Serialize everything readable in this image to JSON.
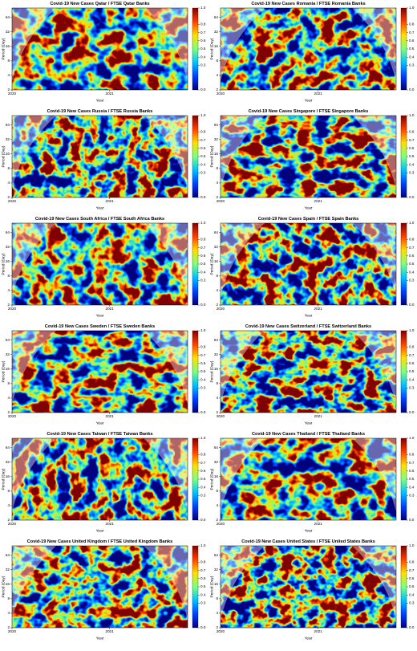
{
  "chart_data": [
    {
      "type": "heatmap",
      "title": "Covid-19 New Cases Qatar / FTSE Qatar Banks",
      "x_label": "Year",
      "y_label": "Period (Day)",
      "xlim": [
        2020,
        2021.8
      ],
      "xticks": [
        2020,
        2021
      ],
      "ylim": [
        2,
        100
      ],
      "log_y": true,
      "yticks": [
        2,
        4,
        8,
        16,
        32,
        64
      ],
      "colormap": [
        "#00007f",
        "#0040ff",
        "#00c0ff",
        "#7fff80",
        "#ffe000",
        "#ff4000",
        "#7f0000"
      ],
      "colorbar_lim": [
        0,
        1
      ],
      "colorbar_ticks": [
        {
          "value": 1,
          "label": "1.0"
        },
        {
          "value": 0.8,
          "label": "0.8"
        },
        {
          "value": 0.7,
          "label": "0.7"
        },
        {
          "value": 0.6,
          "label": "0.6"
        },
        {
          "value": 0.5,
          "label": "0.5"
        },
        {
          "value": 0.4,
          "label": "0.4"
        },
        {
          "value": 0.3,
          "label": "0.3"
        },
        {
          "value": 0,
          "label": "0.0"
        }
      ]
    },
    {
      "type": "heatmap",
      "title": "Covid-19 New Cases Romania / FTSE Romania Banks",
      "x_label": "Year",
      "y_label": "Period (Day)",
      "xlim": [
        2020,
        2021.8
      ],
      "xticks": [
        2020,
        2021
      ],
      "ylim": [
        2,
        100
      ],
      "log_y": true,
      "yticks": [
        2,
        4,
        8,
        16,
        32,
        64
      ],
      "colormap": [
        "#00007f",
        "#0040ff",
        "#00c0ff",
        "#7fff80",
        "#ffe000",
        "#ff4000",
        "#7f0000"
      ],
      "colorbar_lim": [
        0,
        1
      ],
      "colorbar_ticks": [
        {
          "value": 1,
          "label": "1.0"
        },
        {
          "value": 0.8,
          "label": "0.8"
        },
        {
          "value": 0.7,
          "label": "0.7"
        },
        {
          "value": 0.6,
          "label": "0.6"
        },
        {
          "value": 0.5,
          "label": "0.5"
        },
        {
          "value": 0.4,
          "label": "0.4"
        },
        {
          "value": 0.3,
          "label": "0.3"
        },
        {
          "value": 0,
          "label": "0.0"
        }
      ]
    },
    {
      "type": "heatmap",
      "title": "Covid-19 New Cases Russia / FTSE Russia Banks",
      "x_label": "Year",
      "y_label": "Period (Day)",
      "xlim": [
        2020,
        2021.8
      ],
      "xticks": [
        2020,
        2021
      ],
      "ylim": [
        2,
        100
      ],
      "log_y": true,
      "yticks": [
        2,
        4,
        8,
        16,
        32,
        64
      ],
      "colormap": [
        "#00007f",
        "#0040ff",
        "#00c0ff",
        "#7fff80",
        "#ffe000",
        "#ff4000",
        "#7f0000"
      ],
      "colorbar_lim": [
        0,
        1
      ],
      "colorbar_ticks": [
        {
          "value": 1,
          "label": "1.0"
        },
        {
          "value": 0.8,
          "label": "0.8"
        },
        {
          "value": 0.7,
          "label": "0.7"
        },
        {
          "value": 0.6,
          "label": "0.6"
        },
        {
          "value": 0.5,
          "label": "0.5"
        },
        {
          "value": 0.4,
          "label": "0.4"
        },
        {
          "value": 0.3,
          "label": "0.3"
        },
        {
          "value": 0,
          "label": "0.0"
        }
      ]
    },
    {
      "type": "heatmap",
      "title": "Covid-19 New Cases Singapore / FTSE Singapore Banks",
      "x_label": "Year",
      "y_label": "Period (Day)",
      "xlim": [
        2020,
        2021.8
      ],
      "xticks": [
        2020,
        2021
      ],
      "ylim": [
        2,
        100
      ],
      "log_y": true,
      "yticks": [
        2,
        4,
        8,
        16,
        32,
        64
      ],
      "colormap": [
        "#00007f",
        "#0040ff",
        "#00c0ff",
        "#7fff80",
        "#ffe000",
        "#ff4000",
        "#7f0000"
      ],
      "colorbar_lim": [
        0,
        1
      ],
      "colorbar_ticks": [
        {
          "value": 1,
          "label": "1.0"
        },
        {
          "value": 0.8,
          "label": "0.8"
        },
        {
          "value": 0.7,
          "label": "0.7"
        },
        {
          "value": 0.6,
          "label": "0.6"
        },
        {
          "value": 0.5,
          "label": "0.5"
        },
        {
          "value": 0.4,
          "label": "0.4"
        },
        {
          "value": 0.3,
          "label": "0.3"
        },
        {
          "value": 0,
          "label": "0.0"
        }
      ]
    },
    {
      "type": "heatmap",
      "title": "Covid-19 New Cases South Africa / FTSE South Africa Banks",
      "x_label": "Year",
      "y_label": "Period (Day)",
      "xlim": [
        2020,
        2021.8
      ],
      "xticks": [
        2020,
        2021
      ],
      "ylim": [
        2,
        100
      ],
      "log_y": true,
      "yticks": [
        2,
        4,
        8,
        16,
        32,
        64
      ],
      "colormap": [
        "#00007f",
        "#0040ff",
        "#00c0ff",
        "#7fff80",
        "#ffe000",
        "#ff4000",
        "#7f0000"
      ],
      "colorbar_lim": [
        0,
        1
      ],
      "colorbar_ticks": [
        {
          "value": 1,
          "label": "1.0"
        },
        {
          "value": 0.8,
          "label": "0.8"
        },
        {
          "value": 0.7,
          "label": "0.7"
        },
        {
          "value": 0.6,
          "label": "0.6"
        },
        {
          "value": 0.5,
          "label": "0.5"
        },
        {
          "value": 0.4,
          "label": "0.4"
        },
        {
          "value": 0.3,
          "label": "0.3"
        },
        {
          "value": 0,
          "label": "0.0"
        }
      ]
    },
    {
      "type": "heatmap",
      "title": "Covid-19 New Cases Spain / FTSE Spain Banks",
      "x_label": "Year",
      "y_label": "Period (Day)",
      "xlim": [
        2020,
        2021.8
      ],
      "xticks": [
        2020,
        2021
      ],
      "ylim": [
        2,
        100
      ],
      "log_y": true,
      "yticks": [
        2,
        4,
        8,
        16,
        32,
        64
      ],
      "colormap": [
        "#00007f",
        "#0040ff",
        "#00c0ff",
        "#7fff80",
        "#ffe000",
        "#ff4000",
        "#7f0000"
      ],
      "colorbar_lim": [
        0,
        1
      ],
      "colorbar_ticks": [
        {
          "value": 1,
          "label": "1.0"
        },
        {
          "value": 0.8,
          "label": "0.8"
        },
        {
          "value": 0.7,
          "label": "0.7"
        },
        {
          "value": 0.6,
          "label": "0.6"
        },
        {
          "value": 0.5,
          "label": "0.5"
        },
        {
          "value": 0.4,
          "label": "0.4"
        },
        {
          "value": 0.3,
          "label": "0.3"
        },
        {
          "value": 0,
          "label": "0.0"
        }
      ]
    },
    {
      "type": "heatmap",
      "title": "Covid-19 New Cases Sweden / FTSE Sweden Banks",
      "x_label": "Year",
      "y_label": "Period (Day)",
      "xlim": [
        2020,
        2021.8
      ],
      "xticks": [
        2020,
        2021
      ],
      "ylim": [
        2,
        100
      ],
      "log_y": true,
      "yticks": [
        2,
        4,
        8,
        16,
        32,
        64
      ],
      "colormap": [
        "#00007f",
        "#0040ff",
        "#00c0ff",
        "#7fff80",
        "#ffe000",
        "#ff4000",
        "#7f0000"
      ],
      "colorbar_lim": [
        0,
        1
      ],
      "colorbar_ticks": [
        {
          "value": 1,
          "label": "1.0"
        },
        {
          "value": 0.8,
          "label": "0.8"
        },
        {
          "value": 0.7,
          "label": "0.7"
        },
        {
          "value": 0.6,
          "label": "0.6"
        },
        {
          "value": 0.5,
          "label": "0.5"
        },
        {
          "value": 0.4,
          "label": "0.4"
        },
        {
          "value": 0.3,
          "label": "0.3"
        },
        {
          "value": 0,
          "label": "0.0"
        }
      ]
    },
    {
      "type": "heatmap",
      "title": "Covid-19 New Cases Switzerland / FTSE Switzerland Banks",
      "x_label": "Year",
      "y_label": "Period (Day)",
      "xlim": [
        2020,
        2021.8
      ],
      "xticks": [
        2020,
        2021
      ],
      "ylim": [
        2,
        100
      ],
      "log_y": true,
      "yticks": [
        2,
        4,
        8,
        16,
        32,
        64
      ],
      "colormap": [
        "#00007f",
        "#0040ff",
        "#00c0ff",
        "#7fff80",
        "#ffe000",
        "#ff4000",
        "#7f0000"
      ],
      "colorbar_lim": [
        0,
        1
      ],
      "colorbar_ticks": [
        {
          "value": 1,
          "label": "1.0"
        },
        {
          "value": 0.8,
          "label": "0.8"
        },
        {
          "value": 0.7,
          "label": "0.7"
        },
        {
          "value": 0.6,
          "label": "0.6"
        },
        {
          "value": 0.5,
          "label": "0.5"
        },
        {
          "value": 0.4,
          "label": "0.4"
        },
        {
          "value": 0.3,
          "label": "0.3"
        },
        {
          "value": 0,
          "label": "0.0"
        }
      ]
    },
    {
      "type": "heatmap",
      "title": "Covid-19 New Cases Taiwan / FTSE Taiwan Banks",
      "x_label": "Year",
      "y_label": "Period (Day)",
      "xlim": [
        2020,
        2021.8
      ],
      "xticks": [
        2020,
        2021
      ],
      "ylim": [
        2,
        100
      ],
      "log_y": true,
      "yticks": [
        2,
        4,
        8,
        16,
        32,
        64
      ],
      "colormap": [
        "#00007f",
        "#0040ff",
        "#00c0ff",
        "#7fff80",
        "#ffe000",
        "#ff4000",
        "#7f0000"
      ],
      "colorbar_lim": [
        0,
        1
      ],
      "colorbar_ticks": [
        {
          "value": 1,
          "label": "1.0"
        },
        {
          "value": 0.8,
          "label": "0.8"
        },
        {
          "value": 0.7,
          "label": "0.7"
        },
        {
          "value": 0.6,
          "label": "0.6"
        },
        {
          "value": 0.5,
          "label": "0.5"
        },
        {
          "value": 0.4,
          "label": "0.4"
        },
        {
          "value": 0.3,
          "label": "0.3"
        },
        {
          "value": 0,
          "label": "0.0"
        }
      ]
    },
    {
      "type": "heatmap",
      "title": "Covid-19 New Cases Thailand / FTSE Thailand Banks",
      "x_label": "Year",
      "y_label": "Period (Day)",
      "xlim": [
        2020,
        2021.8
      ],
      "xticks": [
        2020,
        2021
      ],
      "ylim": [
        2,
        100
      ],
      "log_y": true,
      "yticks": [
        2,
        4,
        8,
        16,
        32,
        64
      ],
      "colormap": [
        "#00007f",
        "#0040ff",
        "#00c0ff",
        "#7fff80",
        "#ffe000",
        "#ff4000",
        "#7f0000"
      ],
      "colorbar_lim": [
        0,
        1
      ],
      "colorbar_ticks": [
        {
          "value": 1,
          "label": "1.0"
        },
        {
          "value": 0.8,
          "label": "0.8"
        },
        {
          "value": 0.7,
          "label": "0.7"
        },
        {
          "value": 0.6,
          "label": "0.6"
        },
        {
          "value": 0.5,
          "label": "0.5"
        },
        {
          "value": 0.4,
          "label": "0.4"
        },
        {
          "value": 0.3,
          "label": "0.3"
        },
        {
          "value": 0,
          "label": "0.0"
        }
      ]
    },
    {
      "type": "heatmap",
      "title": "Covid-19 New Cases United Kingdom / FTSE United Kingdom Banks",
      "x_label": "Year",
      "y_label": "Period (Day)",
      "xlim": [
        2020,
        2021.8
      ],
      "xticks": [
        2020,
        2021
      ],
      "ylim": [
        2,
        100
      ],
      "log_y": true,
      "yticks": [
        2,
        4,
        8,
        16,
        32,
        64
      ],
      "colormap": [
        "#00007f",
        "#0040ff",
        "#00c0ff",
        "#7fff80",
        "#ffe000",
        "#ff4000",
        "#7f0000"
      ],
      "colorbar_lim": [
        0,
        1
      ],
      "colorbar_ticks": [
        {
          "value": 1,
          "label": "1.0"
        },
        {
          "value": 0.8,
          "label": "0.8"
        },
        {
          "value": 0.7,
          "label": "0.7"
        },
        {
          "value": 0.6,
          "label": "0.6"
        },
        {
          "value": 0.5,
          "label": "0.5"
        },
        {
          "value": 0.4,
          "label": "0.4"
        },
        {
          "value": 0.3,
          "label": "0.3"
        },
        {
          "value": 0,
          "label": "0.0"
        }
      ]
    },
    {
      "type": "heatmap",
      "title": "Covid-19 New Cases United States / FTSE United States Banks",
      "x_label": "Year",
      "y_label": "Period (Day)",
      "xlim": [
        2020,
        2021.8
      ],
      "xticks": [
        2020,
        2021
      ],
      "ylim": [
        2,
        100
      ],
      "log_y": true,
      "yticks": [
        2,
        4,
        8,
        16,
        32,
        64
      ],
      "colormap": [
        "#00007f",
        "#0040ff",
        "#00c0ff",
        "#7fff80",
        "#ffe000",
        "#ff4000",
        "#7f0000"
      ],
      "colorbar_lim": [
        0,
        1
      ],
      "colorbar_ticks": [
        {
          "value": 1,
          "label": "1.0"
        },
        {
          "value": 0.8,
          "label": "0.8"
        },
        {
          "value": 0.7,
          "label": "0.7"
        },
        {
          "value": 0.6,
          "label": "0.6"
        },
        {
          "value": 0.5,
          "label": "0.5"
        },
        {
          "value": 0.4,
          "label": "0.4"
        },
        {
          "value": 0.3,
          "label": "0.3"
        },
        {
          "value": 0,
          "label": "0.0"
        }
      ]
    }
  ]
}
